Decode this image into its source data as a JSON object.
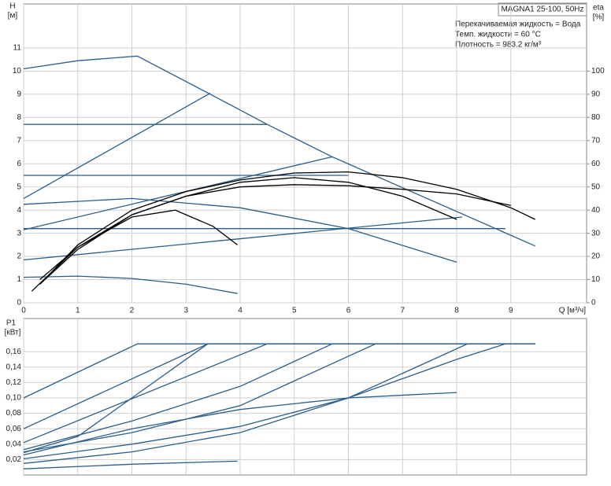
{
  "chart_data": [
    {
      "type": "line",
      "title": "MAGNA1 25-100, 50Hz",
      "annotations": [
        "Перекачиваемая жидкость = Вода",
        "Темп. жидкости = 60 °C",
        "Плотность = 983.2 кг/м³"
      ],
      "y_label": "H",
      "y_unit": "[м]",
      "y2_label": "eta",
      "y2_unit": "[%]",
      "x_label": "Q [м³/ч]",
      "xlim": [
        0,
        10.4
      ],
      "ylim": [
        0,
        12.9
      ],
      "y2lim": [
        0,
        129
      ],
      "xticks": [
        0,
        1,
        2,
        3,
        4,
        5,
        6,
        7,
        8,
        9
      ],
      "yticks": [
        0,
        1,
        2,
        3,
        4,
        5,
        6,
        7,
        8,
        9,
        10,
        11
      ],
      "y2ticks": [
        0,
        10,
        20,
        30,
        40,
        50,
        60,
        70,
        80,
        90,
        100
      ],
      "grid": true,
      "line_color": "#2b5d8a",
      "eta_color": "#000000",
      "series": [
        {
          "x": [
            0,
            1,
            2.1,
            3.45,
            4.5,
            5.7,
            9.45
          ],
          "values": [
            10.1,
            10.45,
            10.65,
            9.0,
            7.7,
            6.3,
            2.45
          ]
        },
        {
          "x": [
            0,
            3.45
          ],
          "values": [
            4.5,
            9.05
          ]
        },
        {
          "x": [
            0,
            4.5
          ],
          "values": [
            7.7,
            7.7
          ]
        },
        {
          "x": [
            0,
            6.0
          ],
          "values": [
            5.5,
            5.5
          ]
        },
        {
          "x": [
            0,
            8.9
          ],
          "values": [
            3.2,
            3.2
          ]
        },
        {
          "x": [
            0,
            5.7
          ],
          "values": [
            3.15,
            6.3
          ]
        },
        {
          "x": [
            0,
            8.1
          ],
          "values": [
            1.85,
            3.7
          ]
        },
        {
          "x": [
            0,
            2,
            4,
            6,
            8
          ],
          "values": [
            4.25,
            4.5,
            4.1,
            3.2,
            1.75
          ]
        },
        {
          "x": [
            0,
            1,
            2,
            3,
            3.95
          ],
          "values": [
            1.1,
            1.15,
            1.05,
            0.8,
            0.4
          ]
        },
        {
          "axis": "y2",
          "x": [
            0.3,
            1,
            2,
            3,
            4,
            5,
            6,
            7,
            8,
            9,
            9.45
          ],
          "values": [
            8,
            25,
            40,
            48,
            53,
            56,
            56.5,
            54,
            49,
            41,
            36
          ]
        },
        {
          "axis": "y2",
          "x": [
            0.3,
            1,
            2,
            3,
            4,
            5,
            6,
            7,
            8,
            9
          ],
          "values": [
            8,
            23,
            38,
            46,
            50,
            51,
            50.5,
            49,
            47,
            42
          ]
        },
        {
          "axis": "y2",
          "x": [
            0.15,
            1,
            2,
            3,
            4,
            5,
            6,
            7,
            8
          ],
          "values": [
            5,
            24,
            38,
            46,
            52,
            54,
            52,
            46,
            36
          ]
        },
        {
          "axis": "y2",
          "x": [
            0.3,
            1,
            2,
            2.8,
            3.5,
            3.95
          ],
          "values": [
            10,
            24,
            37,
            40,
            33,
            25
          ]
        }
      ]
    },
    {
      "type": "line",
      "y_label": "P1",
      "y_unit": "[кВт]",
      "xlim": [
        0,
        10.4
      ],
      "ylim": [
        0,
        0.203
      ],
      "yticks": [
        {
          "value": 0.02,
          "label": "0,02"
        },
        {
          "value": 0.04,
          "label": "0,04"
        },
        {
          "value": 0.06,
          "label": "0,06"
        },
        {
          "value": 0.08,
          "label": "0,08"
        },
        {
          "value": 0.1,
          "label": "0,10"
        },
        {
          "value": 0.12,
          "label": "0,12"
        },
        {
          "value": 0.14,
          "label": "0,14"
        },
        {
          "value": 0.16,
          "label": "0,16"
        }
      ],
      "grid": true,
      "line_color": "#2b5d8a",
      "series": [
        {
          "x": [
            0,
            2.1,
            9.45
          ],
          "values": [
            0.1,
            0.17,
            0.17
          ]
        },
        {
          "x": [
            0,
            3.4,
            9.45
          ],
          "values": [
            0.06,
            0.17,
            0.17
          ]
        },
        {
          "x": [
            0,
            4.5,
            9.45
          ],
          "values": [
            0.042,
            0.17,
            0.17
          ]
        },
        {
          "x": [
            0,
            1,
            2,
            3.4
          ],
          "values": [
            0.029,
            0.05,
            0.1,
            0.17
          ]
        },
        {
          "x": [
            0,
            2,
            4,
            5.7,
            9.45
          ],
          "values": [
            0.033,
            0.07,
            0.115,
            0.17,
            0.17
          ]
        },
        {
          "x": [
            0,
            2,
            4,
            6.5,
            9.45
          ],
          "values": [
            0.03,
            0.055,
            0.09,
            0.17,
            0.17
          ]
        },
        {
          "x": [
            0,
            2,
            4,
            6,
            8,
            8.9,
            9.45
          ],
          "values": [
            0.021,
            0.04,
            0.063,
            0.1,
            0.15,
            0.17,
            0.17
          ]
        },
        {
          "x": [
            0,
            2,
            4,
            6,
            8.2,
            9.45
          ],
          "values": [
            0.015,
            0.03,
            0.055,
            0.1,
            0.17,
            0.17
          ]
        },
        {
          "x": [
            0,
            2,
            4,
            6,
            8
          ],
          "values": [
            0.026,
            0.06,
            0.085,
            0.1,
            0.107
          ]
        },
        {
          "x": [
            0,
            2,
            3.95
          ],
          "values": [
            0.008,
            0.014,
            0.018
          ]
        }
      ]
    }
  ]
}
